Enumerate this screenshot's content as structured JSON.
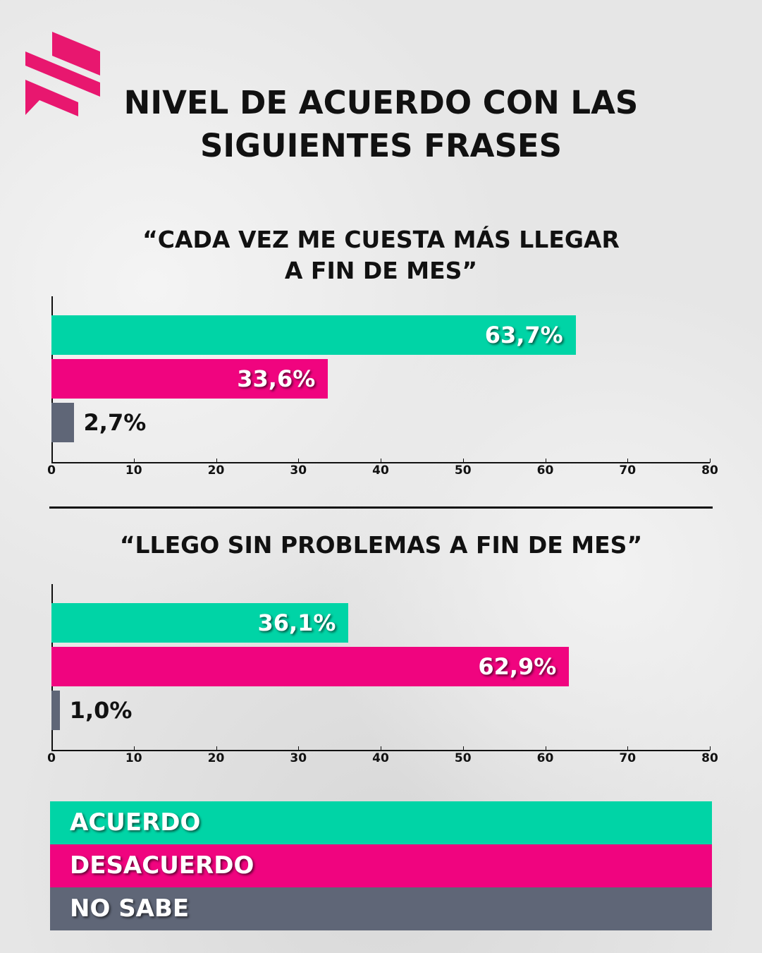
{
  "title_line1": "NIVEL DE ACUERDO CON LAS",
  "title_line2": "SIGUIENTES FRASES",
  "colors": {
    "acuerdo": "#00D4A6",
    "desacuerdo": "#F0047F",
    "no_sabe": "#5F6677",
    "logo": "#E8176F"
  },
  "chart_data": [
    {
      "type": "bar",
      "orientation": "horizontal",
      "title_line1": "“CADA VEZ ME CUESTA MÁS LLEGAR",
      "title_line2": "A FIN DE MES”",
      "categories": [
        "ACUERDO",
        "DESACUERDO",
        "NO SABE"
      ],
      "values": [
        63.7,
        33.6,
        2.7
      ],
      "labels": [
        "63,7%",
        "33,6%",
        "2,7%"
      ],
      "xlim": [
        0,
        80
      ],
      "xticks": [
        "0",
        "10",
        "20",
        "30",
        "40",
        "50",
        "60",
        "70",
        "80"
      ]
    },
    {
      "type": "bar",
      "orientation": "horizontal",
      "title_line1": "“LLEGO SIN PROBLEMAS A FIN DE MES”",
      "categories": [
        "ACUERDO",
        "DESACUERDO",
        "NO SABE"
      ],
      "values": [
        36.1,
        62.9,
        1.0
      ],
      "labels": [
        "36,1%",
        "62,9%",
        "1,0%"
      ],
      "xlim": [
        0,
        80
      ],
      "xticks": [
        "0",
        "10",
        "20",
        "30",
        "40",
        "50",
        "60",
        "70",
        "80"
      ]
    }
  ],
  "legend": [
    "ACUERDO",
    "DESACUERDO",
    "NO SABE"
  ]
}
